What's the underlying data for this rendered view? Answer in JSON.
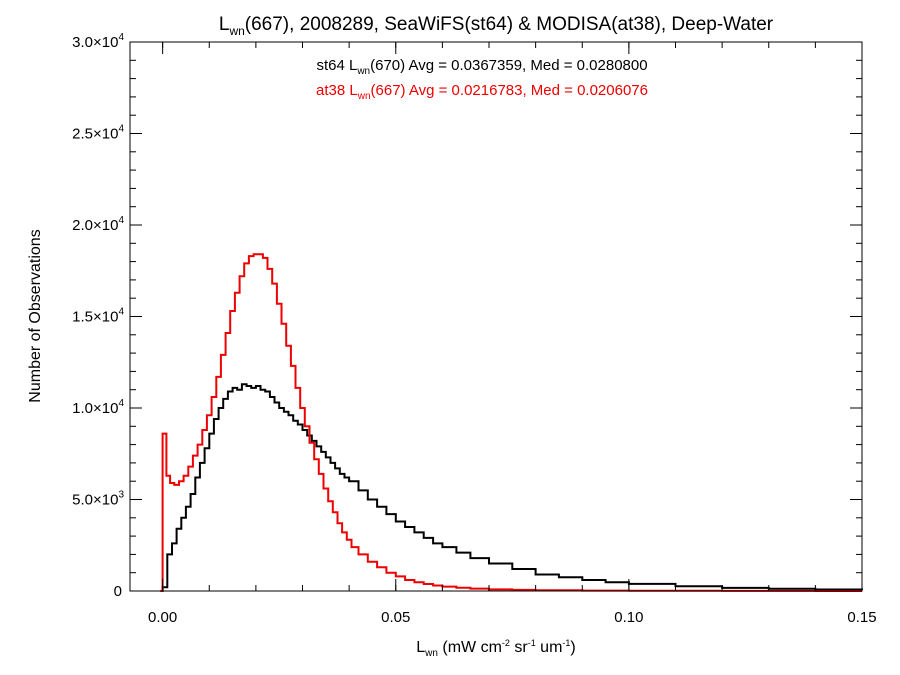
{
  "chart_data": {
    "type": "line",
    "title": {
      "l_main": "L",
      "l_sub": "wn",
      "rest": "(667), 2008289, SeaWiFS(st64) & MODISA(at38), Deep-Water"
    },
    "xlabel": {
      "l_main": "L",
      "l_sub": "wn",
      "p1": " (mW cm",
      "sup1": "-2",
      "p2": " sr",
      "sup2": "-1",
      "p3": " um",
      "sup3": "-1",
      "p4": ")"
    },
    "ylabel": "Number of Observations",
    "xlim": [
      -0.007,
      0.15
    ],
    "ylim": [
      0,
      30000
    ],
    "x_ticks": [
      {
        "value": 0.0,
        "label": "0.00"
      },
      {
        "value": 0.05,
        "label": "0.05"
      },
      {
        "value": 0.1,
        "label": "0.10"
      },
      {
        "value": 0.15,
        "label": "0.15"
      }
    ],
    "y_ticks": [
      {
        "value": 0,
        "mant": "0",
        "exp": ""
      },
      {
        "value": 5000,
        "mant": "5.0×10",
        "exp": "3"
      },
      {
        "value": 10000,
        "mant": "1.0×10",
        "exp": "4"
      },
      {
        "value": 15000,
        "mant": "1.5×10",
        "exp": "4"
      },
      {
        "value": 20000,
        "mant": "2.0×10",
        "exp": "4"
      },
      {
        "value": 25000,
        "mant": "2.5×10",
        "exp": "4"
      },
      {
        "value": 30000,
        "mant": "3.0×10",
        "exp": "4"
      }
    ],
    "grid": false,
    "annotations": [
      {
        "a": "st64 L",
        "sub": "wn",
        "b": "(670) Avg = 0.0367359, Med = 0.0280800",
        "color": "#000000"
      },
      {
        "a": "at38 L",
        "sub": "wn",
        "b": "(667) Avg = 0.0216783, Med = 0.0206076",
        "color": "#ee0000"
      }
    ],
    "series": [
      {
        "color": "#000000",
        "step": true,
        "x": [
          0.0,
          0.001,
          0.002,
          0.003,
          0.004,
          0.005,
          0.006,
          0.007,
          0.008,
          0.009,
          0.01,
          0.011,
          0.012,
          0.013,
          0.014,
          0.015,
          0.016,
          0.017,
          0.018,
          0.019,
          0.02,
          0.021,
          0.022,
          0.023,
          0.024,
          0.025,
          0.026,
          0.027,
          0.028,
          0.029,
          0.03,
          0.031,
          0.032,
          0.033,
          0.034,
          0.035,
          0.036,
          0.037,
          0.038,
          0.039,
          0.04,
          0.042,
          0.044,
          0.046,
          0.048,
          0.05,
          0.052,
          0.054,
          0.056,
          0.058,
          0.06,
          0.063,
          0.066,
          0.07,
          0.075,
          0.08,
          0.085,
          0.09,
          0.095,
          0.1,
          0.11,
          0.12,
          0.13,
          0.14,
          0.15
        ],
        "y": [
          200,
          2000,
          2600,
          3400,
          4000,
          4600,
          5300,
          6200,
          7000,
          7800,
          8600,
          9400,
          10000,
          10500,
          10900,
          11100,
          11000,
          11300,
          11200,
          11100,
          11200,
          11000,
          10900,
          10600,
          10300,
          10000,
          9800,
          9600,
          9300,
          9100,
          8800,
          8500,
          8200,
          7900,
          7600,
          7300,
          7000,
          6700,
          6400,
          6200,
          6000,
          5500,
          5000,
          4600,
          4200,
          3800,
          3500,
          3200,
          2900,
          2600,
          2400,
          2100,
          1800,
          1500,
          1200,
          900,
          750,
          600,
          480,
          390,
          260,
          170,
          120,
          80,
          60
        ]
      },
      {
        "color": "#ee0000",
        "step": true,
        "x": [
          -0.0005,
          0.0,
          0.0008,
          0.0016,
          0.0025,
          0.0035,
          0.0045,
          0.0055,
          0.0065,
          0.0075,
          0.0085,
          0.0095,
          0.0105,
          0.0115,
          0.0125,
          0.0135,
          0.0145,
          0.0155,
          0.0165,
          0.0175,
          0.0185,
          0.0195,
          0.0205,
          0.0215,
          0.0225,
          0.0235,
          0.0245,
          0.0255,
          0.0265,
          0.0275,
          0.0285,
          0.0295,
          0.0305,
          0.0315,
          0.0325,
          0.0335,
          0.0345,
          0.0355,
          0.0365,
          0.0375,
          0.0385,
          0.0395,
          0.0405,
          0.042,
          0.044,
          0.046,
          0.048,
          0.05,
          0.052,
          0.054,
          0.056,
          0.058,
          0.06,
          0.063,
          0.066,
          0.07,
          0.075,
          0.08,
          0.09,
          0.1,
          0.12,
          0.14,
          0.15
        ],
        "y": [
          0,
          8600,
          6300,
          5900,
          5800,
          6000,
          6300,
          6800,
          7400,
          8000,
          8800,
          9600,
          10600,
          11700,
          12900,
          14100,
          15300,
          16300,
          17200,
          17900,
          18300,
          18400,
          18400,
          18200,
          17600,
          16800,
          15700,
          14600,
          13400,
          12300,
          11100,
          10000,
          9000,
          8100,
          7200,
          6400,
          5600,
          4900,
          4300,
          3700,
          3200,
          2800,
          2400,
          2000,
          1600,
          1300,
          1000,
          800,
          600,
          480,
          380,
          300,
          240,
          180,
          130,
          90,
          60,
          40,
          20,
          10,
          5,
          2,
          0
        ]
      }
    ]
  }
}
